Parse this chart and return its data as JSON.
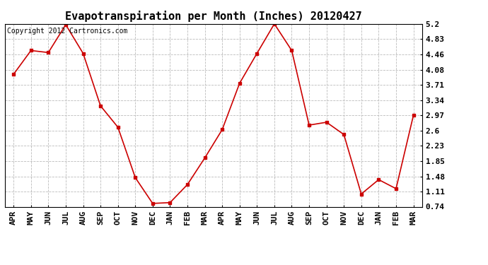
{
  "title": "Evapotranspiration per Month (Inches) 20120427",
  "copyright_text": "Copyright 2012 Cartronics.com",
  "x_labels": [
    "APR",
    "MAY",
    "JUN",
    "JUL",
    "AUG",
    "SEP",
    "OCT",
    "NOV",
    "DEC",
    "JAN",
    "FEB",
    "MAR",
    "APR",
    "MAY",
    "JUN",
    "JUL",
    "AUG",
    "SEP",
    "OCT",
    "NOV",
    "DEC",
    "JAN",
    "FEB",
    "MAR"
  ],
  "y_values": [
    3.97,
    4.55,
    4.5,
    5.18,
    4.48,
    3.2,
    2.68,
    1.45,
    0.82,
    0.84,
    1.28,
    1.93,
    2.62,
    3.75,
    4.48,
    5.2,
    4.55,
    2.73,
    2.8,
    2.5,
    1.05,
    1.4,
    1.18,
    2.97
  ],
  "y_ticks": [
    0.74,
    1.11,
    1.48,
    1.85,
    2.23,
    2.6,
    2.97,
    3.34,
    3.71,
    4.08,
    4.46,
    4.83,
    5.2
  ],
  "line_color": "#cc0000",
  "marker_color": "#cc0000",
  "marker": "s",
  "marker_size": 2.5,
  "background_color": "#ffffff",
  "grid_color": "#bbbbbb",
  "title_fontsize": 11,
  "copyright_fontsize": 7,
  "tick_fontsize": 8,
  "ylim_min": 0.74,
  "ylim_max": 5.2
}
